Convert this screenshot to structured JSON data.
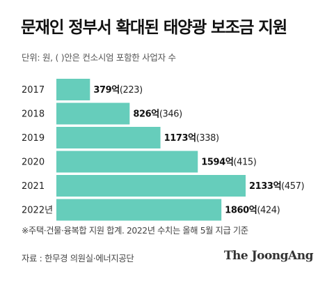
{
  "title": "문재인 정부서 확대된 태양광 보조금 지원",
  "unit_note": "단위: 원, ( )안은 컨소시엄 포함한 사업자 수",
  "footnote": "※주택·건물·융복합 지원 합계. 2022년 수치는 올해 5월 지급 기준",
  "source": "자료 : 한무경 의원실·에너지공단",
  "logo": "The JoongAng",
  "bar_color": "#66cdbb",
  "chart_data": {
    "type": "bar",
    "orientation": "horizontal",
    "categories": [
      "2017",
      "2018",
      "2019",
      "2020",
      "2021",
      "2022년"
    ],
    "values": [
      379,
      826,
      1173,
      1594,
      2133,
      1860
    ],
    "value_labels": [
      "379억",
      "826억",
      "1173억",
      "1594억",
      "2133억",
      "1860억"
    ],
    "counts": [
      223,
      346,
      338,
      415,
      457,
      424
    ],
    "count_labels": [
      "(223)",
      "(346)",
      "(338)",
      "(415)",
      "(457)",
      "(424)"
    ],
    "xlim": [
      0,
      2133
    ],
    "grid": false,
    "legend": "none"
  }
}
